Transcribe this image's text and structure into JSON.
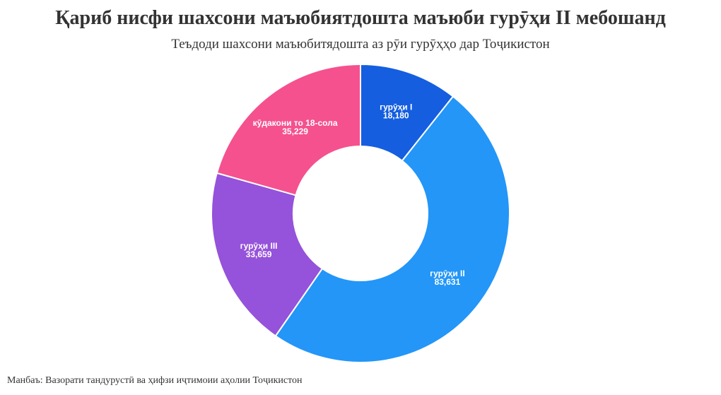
{
  "title": "Қариб нисфи шахсони маъюбиятдошта маъюби гурӯҳи II мебошанд",
  "subtitle": "Теъдоди шахсони маъюбитядошта аз рӯи гурӯҳҳо дар Тоҷикистон",
  "source": "Манбаъ: Вазорати тандурустӣ ва ҳифзи иҷтимоии аҳолии Тоҷикистон",
  "chart_data": {
    "type": "pie",
    "donut": true,
    "start": "12 o'clock",
    "direction": "clockwise",
    "slices": [
      {
        "label": "гурӯҳи I",
        "value": 18180,
        "value_label": "18,180",
        "color": "#155EE0"
      },
      {
        "label": "гурӯҳи II",
        "value": 83631,
        "value_label": "83,631",
        "color": "#2396F8"
      },
      {
        "label": "гурӯҳи III",
        "value": 33659,
        "value_label": "33,659",
        "color": "#9552DA"
      },
      {
        "label": "кӯдакони то 18-сола",
        "value": 35229,
        "value_label": "35,229",
        "color": "#F5518E"
      }
    ]
  }
}
